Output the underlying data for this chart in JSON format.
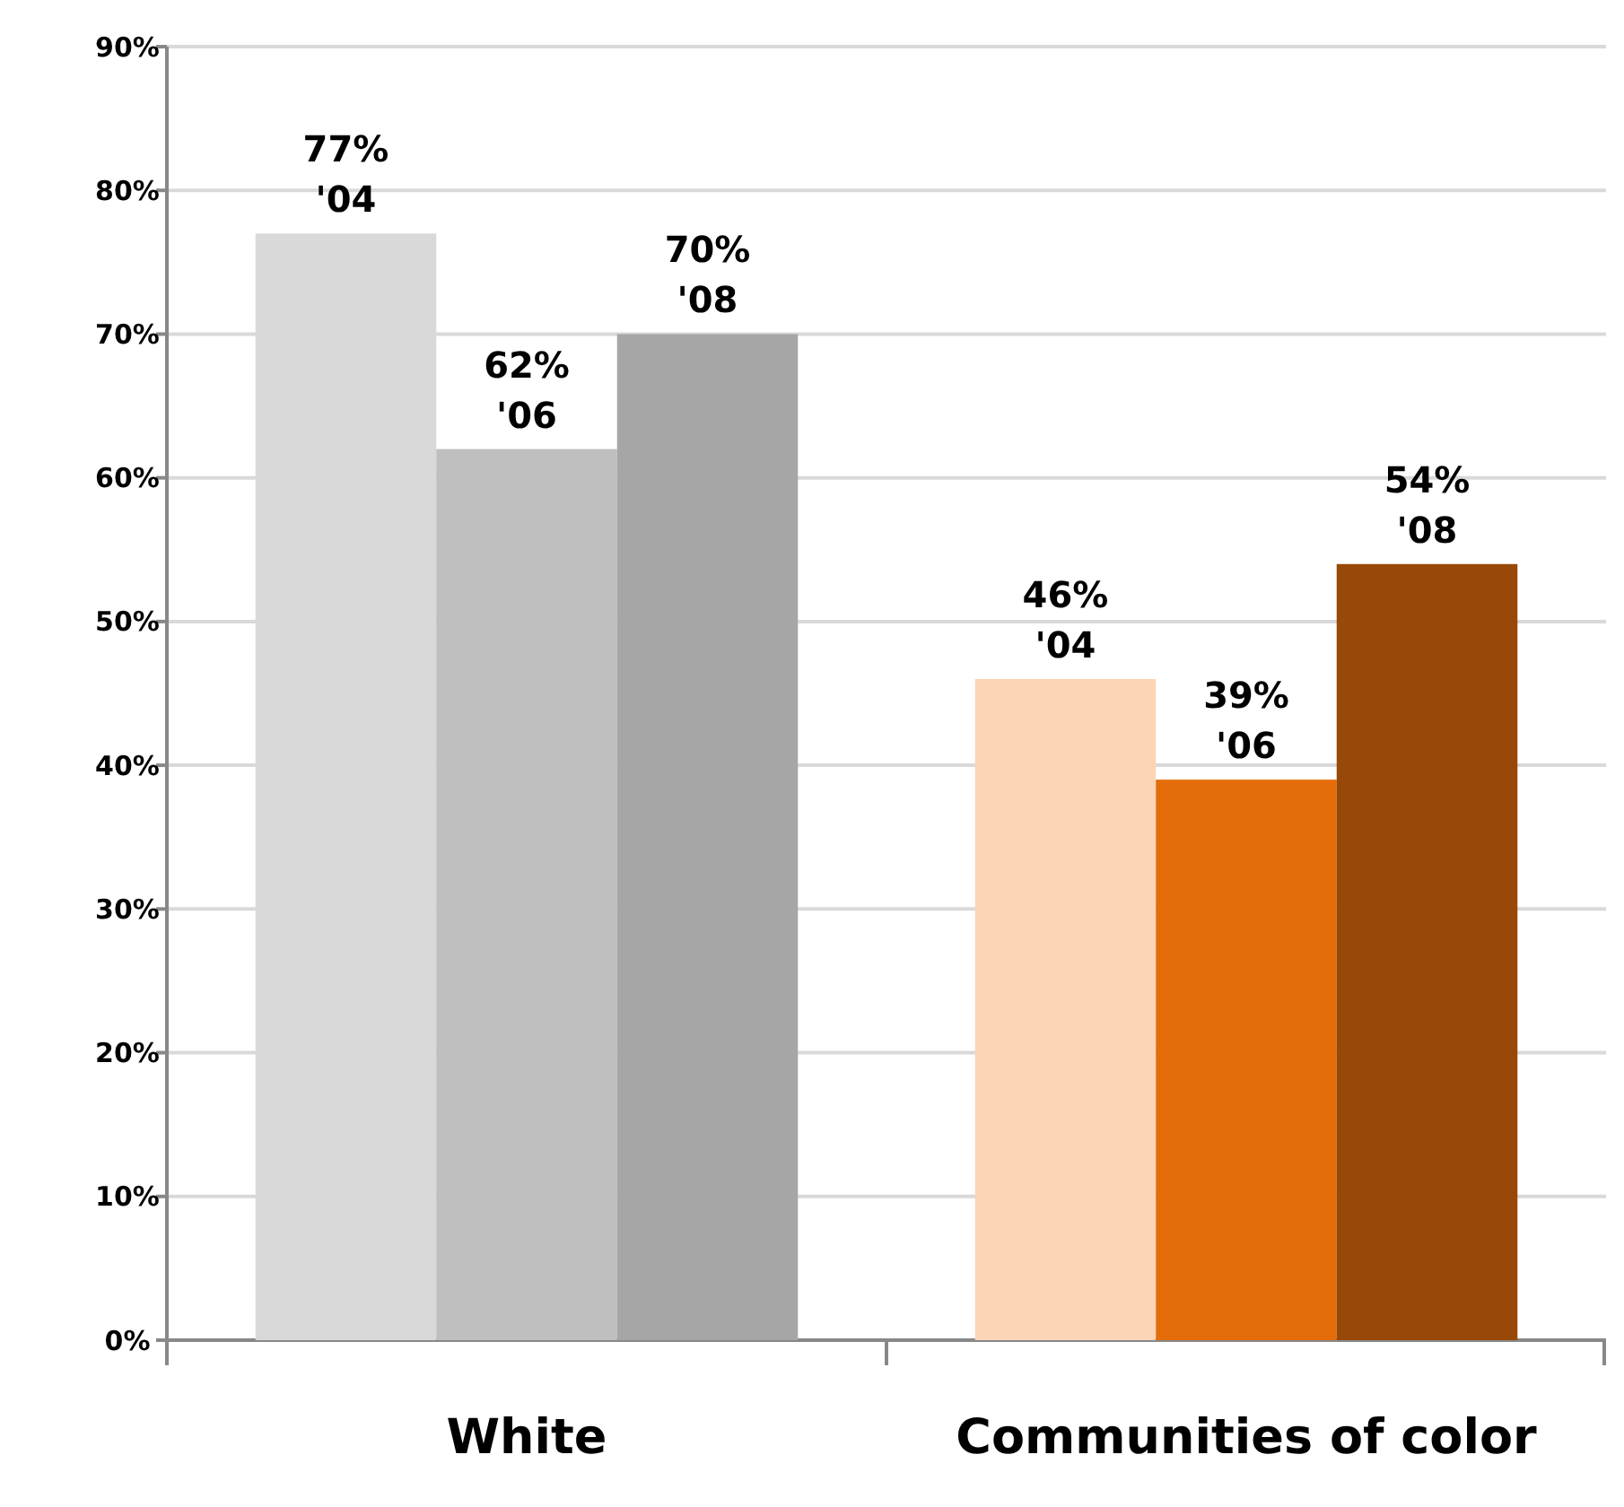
{
  "chart_data": {
    "type": "bar",
    "categories": [
      "White",
      "Communities of color"
    ],
    "series": [
      {
        "name": "'04",
        "colors": [
          "#d9d9d9",
          "#fbd5b5"
        ],
        "values": [
          77,
          46
        ],
        "value_labels": [
          "77%",
          "46%"
        ]
      },
      {
        "name": "'06",
        "colors": [
          "#bfbfbf",
          "#e46c0a"
        ],
        "values": [
          62,
          39
        ],
        "value_labels": [
          "62%",
          "39%"
        ]
      },
      {
        "name": "'08",
        "colors": [
          "#a6a6a6",
          "#984807"
        ],
        "values": [
          70,
          54
        ],
        "value_labels": [
          "70%",
          "54%"
        ]
      }
    ],
    "ylim": [
      0,
      90
    ],
    "yticks": [
      {
        "value": 0,
        "label": "0%"
      },
      {
        "value": 10,
        "label": "10%"
      },
      {
        "value": 20,
        "label": "20%"
      },
      {
        "value": 30,
        "label": "30%"
      },
      {
        "value": 40,
        "label": "40%"
      },
      {
        "value": 50,
        "label": "50%"
      },
      {
        "value": 60,
        "label": "60%"
      },
      {
        "value": 70,
        "label": "70%"
      },
      {
        "value": 80,
        "label": "80%"
      },
      {
        "value": 90,
        "label": "90%"
      }
    ],
    "grid": "y"
  }
}
